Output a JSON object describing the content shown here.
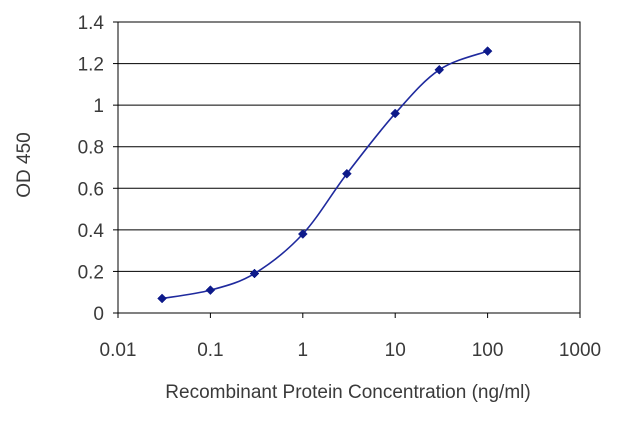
{
  "chart_data": {
    "type": "line",
    "title": "",
    "xlabel": "Recombinant Protein Concentration (ng/ml)",
    "ylabel": "OD 450",
    "x_scale": "log",
    "xlim": [
      0.01,
      1000
    ],
    "ylim": [
      0,
      1.4
    ],
    "x_ticks": [
      0.01,
      0.1,
      1,
      10,
      100,
      1000
    ],
    "x_tick_labels": [
      "0.01",
      "0.1",
      "1",
      "10",
      "100",
      "1000"
    ],
    "y_ticks": [
      0,
      0.2,
      0.4,
      0.6,
      0.8,
      1,
      1.2,
      1.4
    ],
    "y_tick_labels": [
      "0",
      "0.2",
      "0.4",
      "0.6",
      "0.8",
      "1",
      "1.2",
      "1.4"
    ],
    "grid": "horizontal",
    "legend": "none",
    "series": [
      {
        "color": "#1f2a9e",
        "marker_color": "#0d1a8a",
        "x": [
          0.03,
          0.1,
          0.3,
          1,
          3,
          10,
          30,
          100
        ],
        "y": [
          0.07,
          0.11,
          0.19,
          0.38,
          0.67,
          0.96,
          1.17,
          1.26
        ]
      }
    ]
  }
}
